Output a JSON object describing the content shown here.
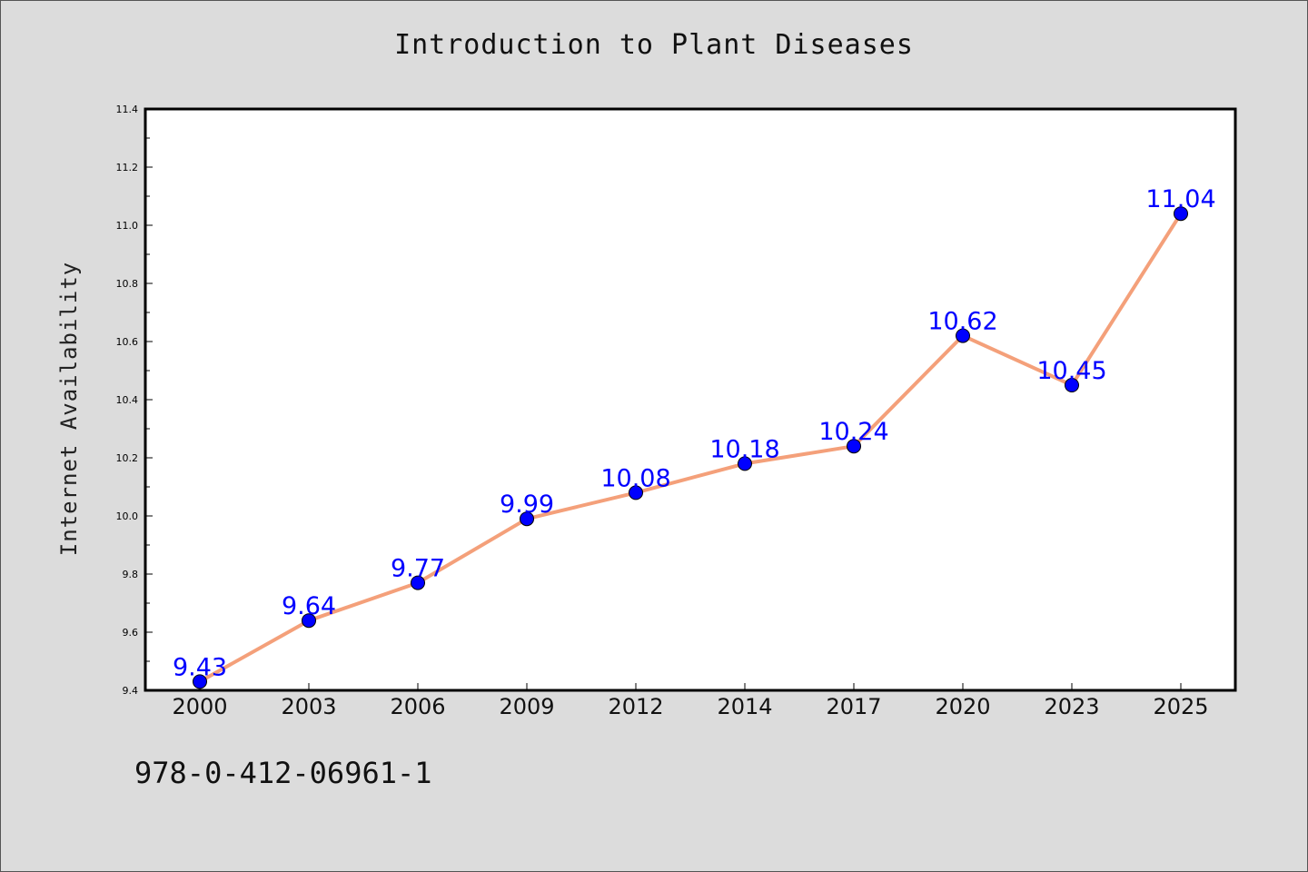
{
  "chart_data": {
    "type": "line",
    "title": "Introduction to Plant Diseases",
    "xlabel": "",
    "ylabel": "Internet Availability",
    "categories": [
      "2000",
      "2003",
      "2006",
      "2009",
      "2012",
      "2014",
      "2017",
      "2020",
      "2023",
      "2025"
    ],
    "series": [
      {
        "values": [
          9.43,
          9.64,
          9.77,
          9.99,
          10.08,
          10.18,
          10.24,
          10.62,
          10.45,
          11.04
        ]
      }
    ],
    "data_labels": [
      "9.43",
      "9.64",
      "9.77",
      "9.99",
      "10.08",
      "10.18",
      "10.24",
      "10.62",
      "10.45",
      "11.04"
    ],
    "ylim": [
      9.4,
      11.4
    ],
    "yticks": [
      "9.4",
      "9.6",
      "9.8",
      "10.0",
      "10.2",
      "10.4",
      "10.6",
      "10.8",
      "11.0",
      "11.2",
      "11.4"
    ],
    "grid": false,
    "legend": "none",
    "colors": {
      "line": "#f4a07a",
      "marker": "#0000ff",
      "label": "#0000ff"
    }
  },
  "footer": {
    "isbn": "978-0-412-06961-1"
  }
}
